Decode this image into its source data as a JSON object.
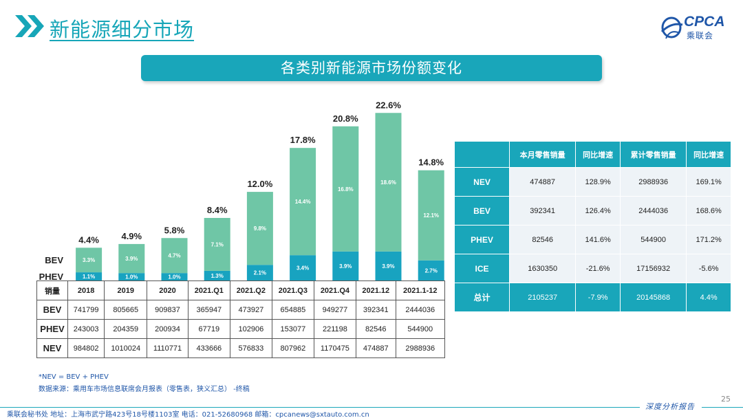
{
  "header": {
    "title": "新能源细分市场",
    "logo_text": "CPCA",
    "logo_sub": "乘联会"
  },
  "banner": {
    "title": "各类别新能源市场份额变化"
  },
  "chart_data": {
    "type": "bar",
    "stacked": true,
    "title": "各类别新能源市场份额变化",
    "categories": [
      "2018",
      "2019",
      "2020",
      "2021.Q1",
      "2021.Q2",
      "2021.Q3",
      "2021.Q4",
      "2021.12",
      "2021.1-12"
    ],
    "series": [
      {
        "name": "PHEV",
        "values": [
          1.1,
          1.0,
          1.0,
          1.3,
          2.1,
          3.4,
          3.9,
          3.9,
          2.7
        ],
        "labels": [
          "1.1%",
          "1.0%",
          "1.0%",
          "1.3%",
          "2.1%",
          "3.4%",
          "3.9%",
          "3.9%",
          "2.7%"
        ],
        "color": "#18a3c0"
      },
      {
        "name": "BEV",
        "values": [
          3.3,
          3.9,
          4.7,
          7.1,
          9.8,
          14.4,
          16.8,
          18.6,
          12.1
        ],
        "labels": [
          "3.3%",
          "3.9%",
          "4.7%",
          "7.1%",
          "9.8%",
          "14.4%",
          "16.8%",
          "18.6%",
          "12.1%"
        ],
        "color": "#6fc6a6"
      }
    ],
    "totals": [
      4.4,
      4.9,
      5.8,
      8.4,
      12.0,
      17.8,
      20.8,
      22.6,
      14.8
    ],
    "total_labels": [
      "4.4%",
      "4.9%",
      "5.8%",
      "8.4%",
      "12.0%",
      "17.8%",
      "20.8%",
      "22.6%",
      "14.8%"
    ],
    "legend": [
      "BEV",
      "PHEV"
    ],
    "xlabel": "",
    "ylabel": "",
    "ylim": [
      0,
      24
    ]
  },
  "data_table": {
    "corner": "销量",
    "rows": [
      {
        "label": "BEV",
        "values": [
          "741799",
          "805665",
          "909837",
          "365947",
          "473927",
          "654885",
          "949277",
          "392341",
          "2444036"
        ]
      },
      {
        "label": "PHEV",
        "values": [
          "243003",
          "204359",
          "200934",
          "67719",
          "102906",
          "153077",
          "221198",
          "82546",
          "544900"
        ]
      },
      {
        "label": "NEV",
        "values": [
          "984802",
          "1010024",
          "1110771",
          "433666",
          "576833",
          "807962",
          "1170475",
          "474887",
          "2988936"
        ]
      }
    ]
  },
  "summary_table": {
    "headers": [
      "本月零售销量",
      "同比增速",
      "累计零售销量",
      "同比增速"
    ],
    "rows": [
      {
        "label": "NEV",
        "values": [
          "474887",
          "128.9%",
          "2988936",
          "169.1%"
        ]
      },
      {
        "label": "BEV",
        "values": [
          "392341",
          "126.4%",
          "2444036",
          "168.6%"
        ]
      },
      {
        "label": "PHEV",
        "values": [
          "82546",
          "141.6%",
          "544900",
          "171.2%"
        ]
      },
      {
        "label": "ICE",
        "values": [
          "1630350",
          "-21.6%",
          "17156932",
          "-5.6%"
        ]
      },
      {
        "label": "总计",
        "values": [
          "2105237",
          "-7.9%",
          "20145868",
          "4.4%"
        ]
      }
    ]
  },
  "notes": {
    "nev_def": "*NEV = BEV + PHEV",
    "source": "数据来源：乘用车市场信息联席会月报表（零售表，狭义汇总） -终稿"
  },
  "footer": {
    "contact": "乘联会秘书处   地址：上海市武宁路423号18号楼1103室   电话：021-52680968   邮箱：cpcanews@sxtauto.com.cn",
    "tagline": "深度分析报告",
    "page": "25"
  },
  "colors": {
    "accent": "#19a6ba",
    "bev": "#6fc6a6",
    "phev": "#18a3c0",
    "text_blue": "#1f56a8"
  }
}
